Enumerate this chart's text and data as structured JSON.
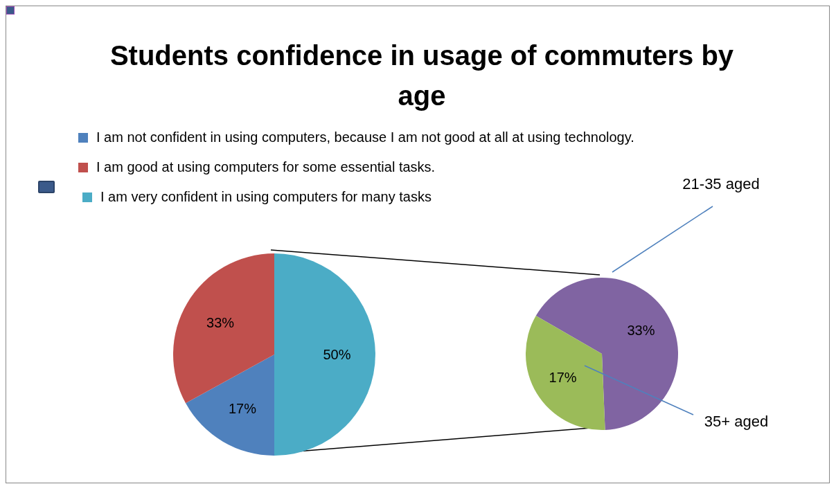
{
  "chart_data": [
    {
      "type": "pie",
      "title": "Students confidence in usage of commuters by age",
      "categories": [
        "I am not confident in using computers, because I am not good at all at using technology.",
        "I am good at using computers for some essential tasks.",
        "I am very confident in using computers for many tasks"
      ],
      "values": [
        17,
        33,
        50
      ],
      "colors": [
        "#4f81bd",
        "#c0504d",
        "#4bacc6"
      ],
      "value_labels": [
        "17%",
        "33%",
        "50%"
      ],
      "legend": "top"
    },
    {
      "type": "pie",
      "categories": [
        "21-35 aged",
        "35+ aged"
      ],
      "values": [
        33,
        17
      ],
      "colors": [
        "#8064a2",
        "#9bbb59"
      ],
      "value_labels": [
        "33%",
        "17%"
      ],
      "legend": false
    }
  ]
}
